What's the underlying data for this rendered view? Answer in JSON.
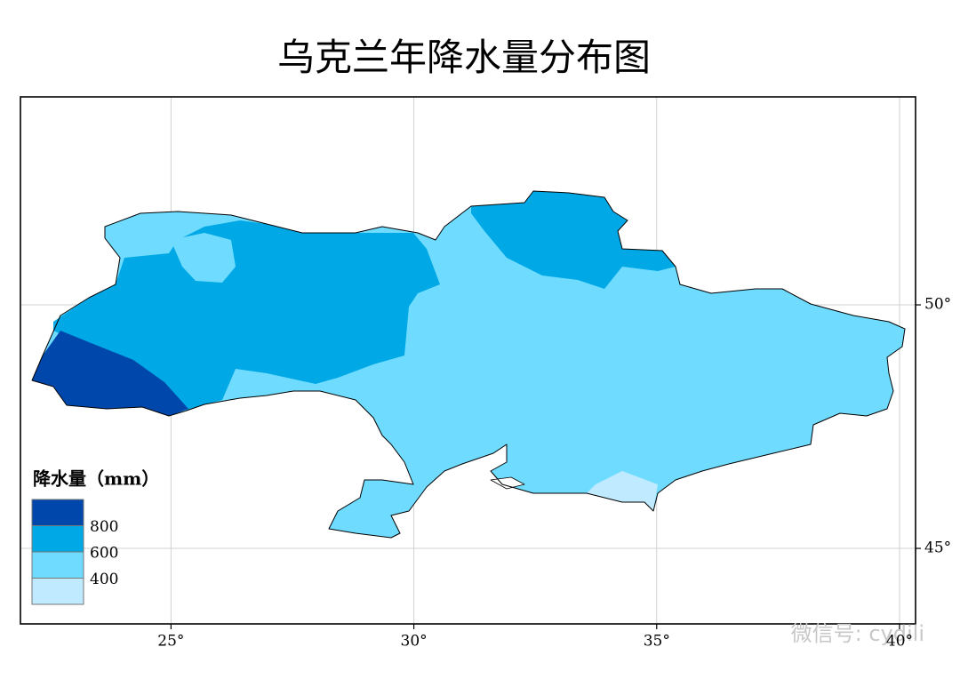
{
  "chart_data": {
    "type": "map",
    "title": "乌克兰年降水量分布图",
    "xlim": [
      21.9,
      40.33
    ],
    "ylim": [
      43.45,
      54.27
    ],
    "xticks": [
      {
        "value": 25,
        "label": "25°"
      },
      {
        "value": 30,
        "label": "30°"
      },
      {
        "value": 35,
        "label": "35°"
      },
      {
        "value": 40,
        "label": "40°"
      }
    ],
    "yticks": [
      {
        "value": 45,
        "label": "45°"
      },
      {
        "value": 50,
        "label": "50°"
      }
    ],
    "grid": true,
    "legend": {
      "title": "降水量（mm）",
      "colors": [
        "#0047ab",
        "#00a8e6",
        "#6fdcff",
        "#c0eaff"
      ],
      "labels": [
        800,
        600,
        400
      ]
    },
    "watermark": "微信号: cydili"
  }
}
